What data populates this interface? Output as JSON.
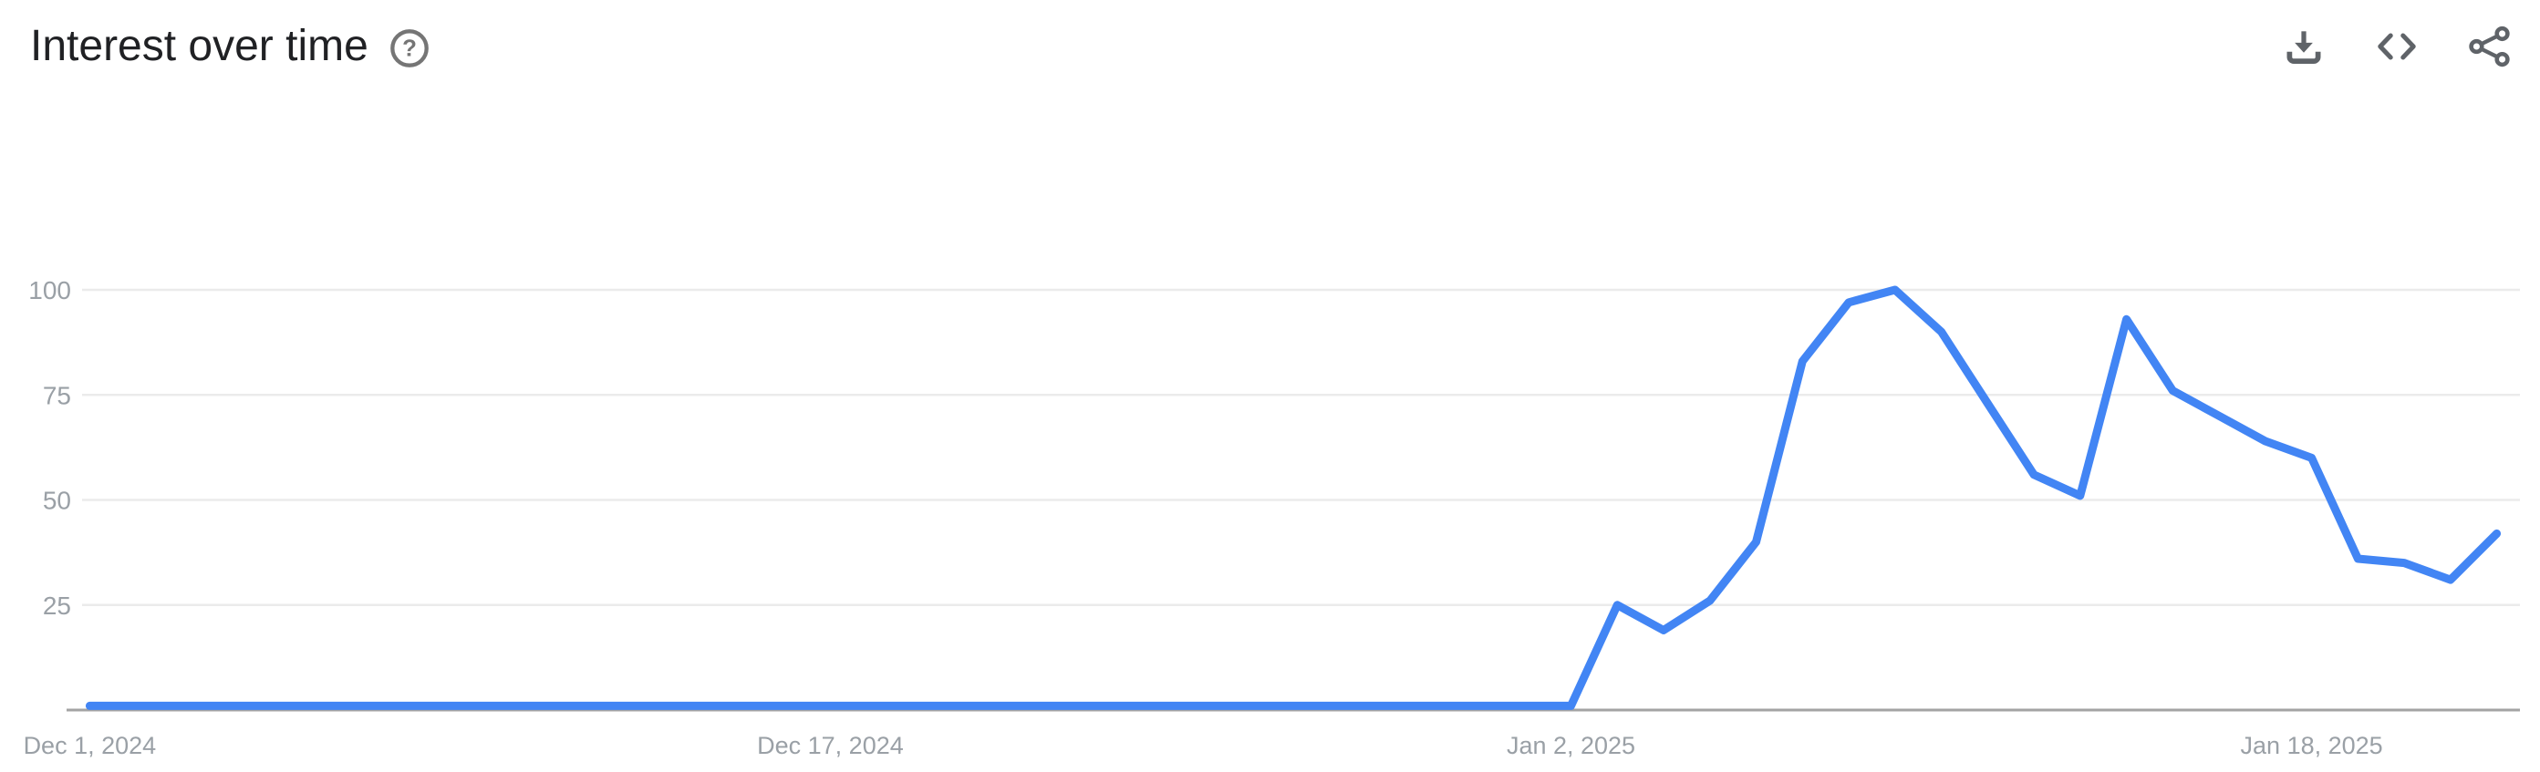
{
  "header": {
    "title": "Interest over time",
    "help_glyph": "?",
    "actions": [
      {
        "name": "download"
      },
      {
        "name": "embed"
      },
      {
        "name": "share"
      }
    ]
  },
  "colors": {
    "line": "#4285f4",
    "grid": "#ebebeb",
    "axis_baseline": "#a3a3a3",
    "tick_label": "#9aa0a6",
    "title": "#202124",
    "icon": "#5f6368",
    "help_icon": "#757575"
  },
  "chart_data": {
    "type": "line",
    "title": "Interest over time",
    "frequency": "daily",
    "ylim": [
      0,
      100
    ],
    "yticks": [
      100,
      75,
      50,
      25
    ],
    "grid": "horizontal-only",
    "legend": "none",
    "xticks": [
      {
        "label": "Dec 1, 2024",
        "index": 0
      },
      {
        "label": "Dec 17, 2024",
        "index": 16
      },
      {
        "label": "Jan 2, 2025",
        "index": 32
      },
      {
        "label": "Jan 18, 2025",
        "index": 48
      }
    ],
    "series": [
      {
        "name": "interest",
        "dates": [
          "2024-12-01",
          "2024-12-02",
          "2024-12-03",
          "2024-12-04",
          "2024-12-05",
          "2024-12-06",
          "2024-12-07",
          "2024-12-08",
          "2024-12-09",
          "2024-12-10",
          "2024-12-11",
          "2024-12-12",
          "2024-12-13",
          "2024-12-14",
          "2024-12-15",
          "2024-12-16",
          "2024-12-17",
          "2024-12-18",
          "2024-12-19",
          "2024-12-20",
          "2024-12-21",
          "2024-12-22",
          "2024-12-23",
          "2024-12-24",
          "2024-12-25",
          "2024-12-26",
          "2024-12-27",
          "2024-12-28",
          "2024-12-29",
          "2024-12-30",
          "2024-12-31",
          "2025-01-01",
          "2025-01-02",
          "2025-01-03",
          "2025-01-04",
          "2025-01-05",
          "2025-01-06",
          "2025-01-07",
          "2025-01-08",
          "2025-01-09",
          "2025-01-10",
          "2025-01-11",
          "2025-01-12",
          "2025-01-13",
          "2025-01-14",
          "2025-01-15",
          "2025-01-16",
          "2025-01-17",
          "2025-01-18",
          "2025-01-19",
          "2025-01-20",
          "2025-01-21",
          "2025-01-22"
        ],
        "values": [
          1,
          1,
          1,
          1,
          1,
          1,
          1,
          1,
          1,
          1,
          1,
          1,
          1,
          1,
          1,
          1,
          1,
          1,
          1,
          1,
          1,
          1,
          1,
          1,
          1,
          1,
          1,
          1,
          1,
          1,
          1,
          1,
          1,
          25,
          19,
          26,
          40,
          83,
          97,
          100,
          90,
          73,
          56,
          51,
          93,
          76,
          70,
          64,
          60,
          36,
          35,
          31,
          42
        ]
      }
    ]
  }
}
